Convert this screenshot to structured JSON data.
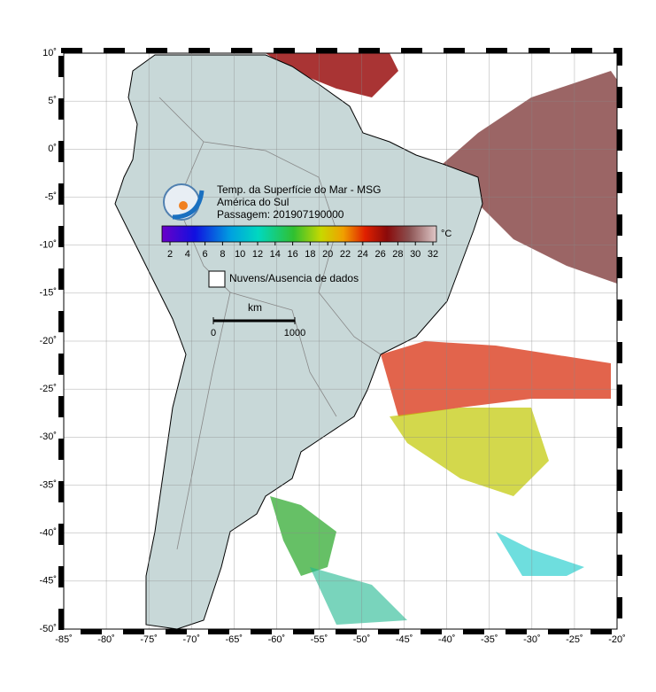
{
  "map": {
    "title_lines": [
      "Temp. da Superfície do Mar - MSG",
      "América do Sul",
      "Passagem: 201907190000"
    ],
    "colorbar": {
      "ticks": [
        2,
        4,
        6,
        8,
        10,
        12,
        14,
        16,
        18,
        20,
        22,
        24,
        26,
        28,
        30,
        32
      ],
      "unit": "°C"
    },
    "legend": "Nuvens/Ausencia de dados",
    "scale": {
      "unit": "km",
      "labels": [
        0,
        1000
      ]
    },
    "lon_labels": [
      "-85˚",
      "-80˚",
      "-75˚",
      "-70˚",
      "-65˚",
      "-60˚",
      "-55˚",
      "-50˚",
      "-45˚",
      "-40˚",
      "-35˚",
      "-30˚",
      "-25˚",
      "-20˚"
    ],
    "lat_labels": [
      "10˚",
      "5˚",
      "0˚",
      "-5˚",
      "-10˚",
      "-15˚",
      "-20˚",
      "-25˚",
      "-30˚",
      "-35˚",
      "-40˚",
      "-45˚",
      "-50˚"
    ]
  }
}
